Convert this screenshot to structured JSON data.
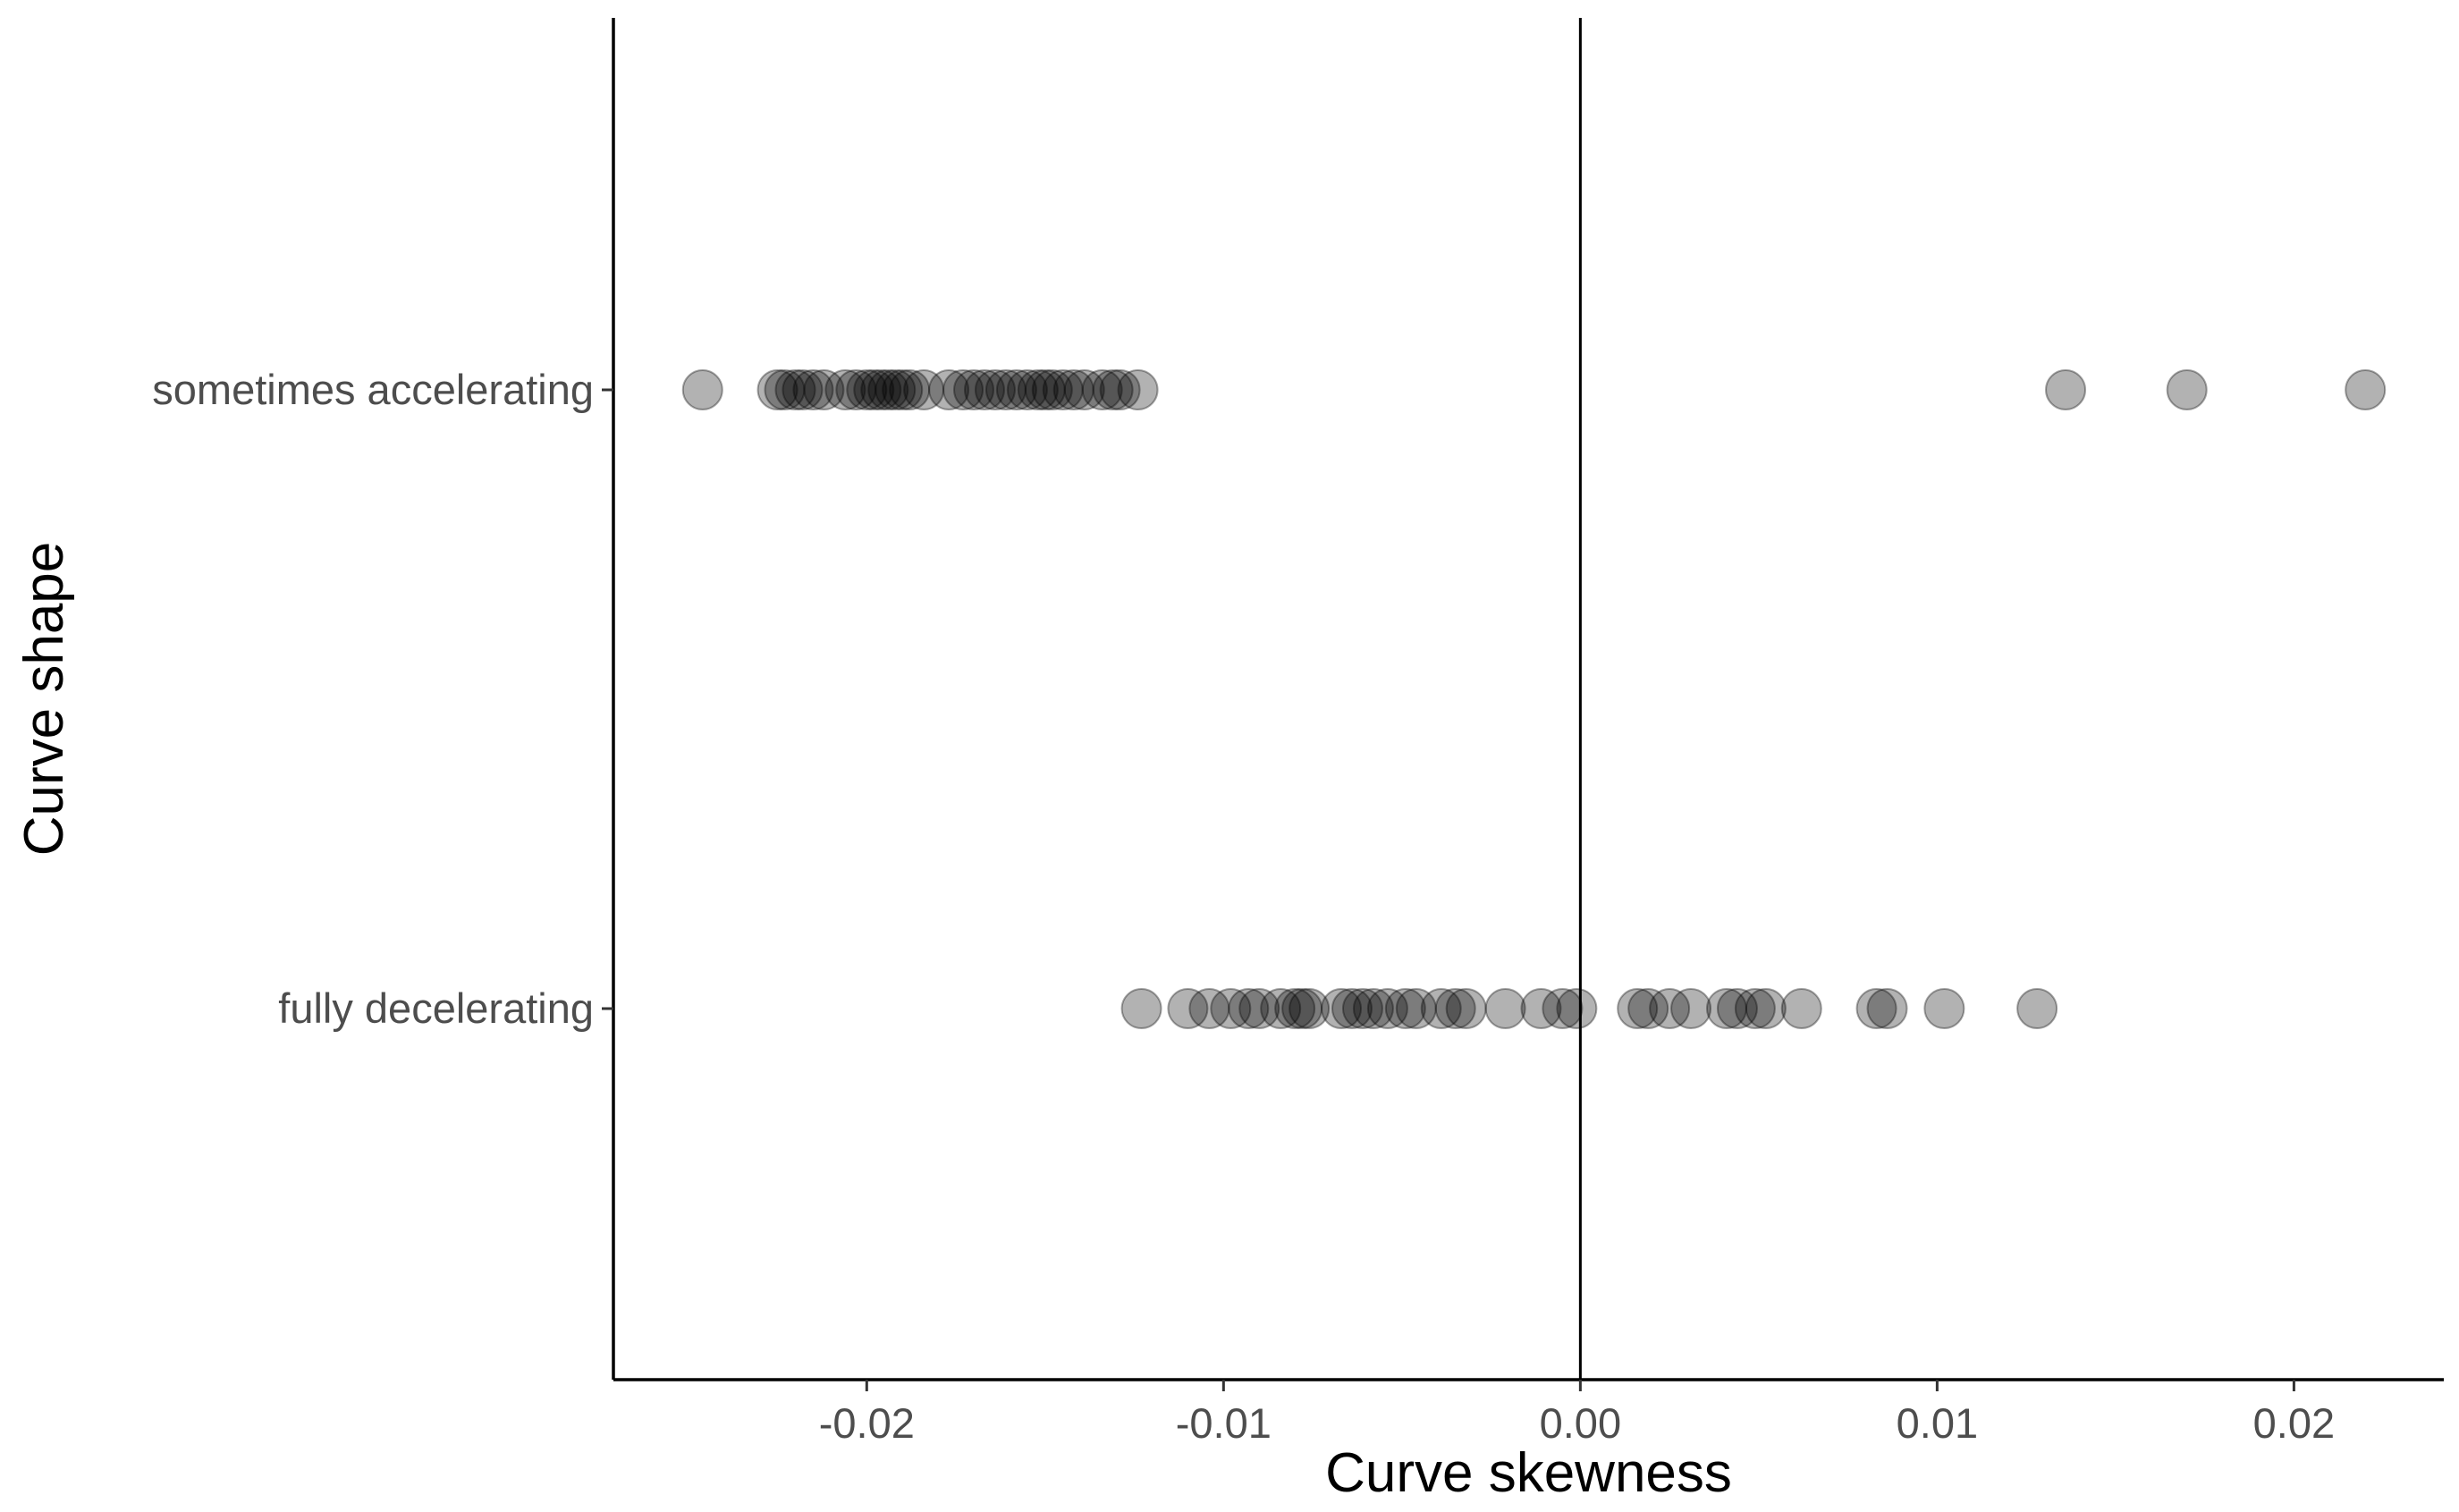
{
  "chart_data": {
    "type": "scatter",
    "title": "",
    "xlabel": "Curve skewness",
    "ylabel": "Curve shape",
    "xlim": [
      -0.0271,
      0.0242
    ],
    "x_ticks": [
      -0.02,
      -0.01,
      0.0,
      0.01,
      0.02
    ],
    "x_tick_labels": [
      "-0.02",
      "-0.01",
      "0.00",
      "0.01",
      "0.02"
    ],
    "categories": [
      "sometimes accelerating",
      "fully decelerating"
    ],
    "reference_line_x": 0,
    "grid": false,
    "point_color": "#000000",
    "point_opacity": 0.3,
    "series": [
      {
        "category": "sometimes accelerating",
        "x": [
          -0.0246,
          -0.0225,
          -0.0223,
          -0.022,
          -0.0218,
          -0.0215,
          -0.0212,
          -0.0206,
          -0.0203,
          -0.02,
          -0.0198,
          -0.0196,
          -0.0194,
          -0.0192,
          -0.019,
          -0.0188,
          -0.0184,
          -0.0177,
          -0.0173,
          -0.017,
          -0.0167,
          -0.0164,
          -0.0161,
          -0.0158,
          -0.0155,
          -0.0152,
          -0.015,
          -0.0148,
          -0.0145,
          -0.0142,
          -0.0139,
          -0.0134,
          -0.0131,
          -0.0129,
          -0.0124,
          0.0136,
          0.017,
          0.022
        ]
      },
      {
        "category": "fully decelerating",
        "x": [
          -0.0123,
          -0.011,
          -0.0104,
          -0.0098,
          -0.0093,
          -0.009,
          -0.0084,
          -0.008,
          -0.0078,
          -0.0076,
          -0.0067,
          -0.0064,
          -0.0061,
          -0.0058,
          -0.0054,
          -0.0049,
          -0.0046,
          -0.0039,
          -0.0035,
          -0.0032,
          -0.0021,
          -0.0011,
          -0.0005,
          -0.0001,
          0.0016,
          0.0019,
          0.0025,
          0.0031,
          0.0041,
          0.0044,
          0.0049,
          0.0052,
          0.0062,
          0.0083,
          0.0086,
          0.0102,
          0.0128
        ]
      }
    ]
  }
}
